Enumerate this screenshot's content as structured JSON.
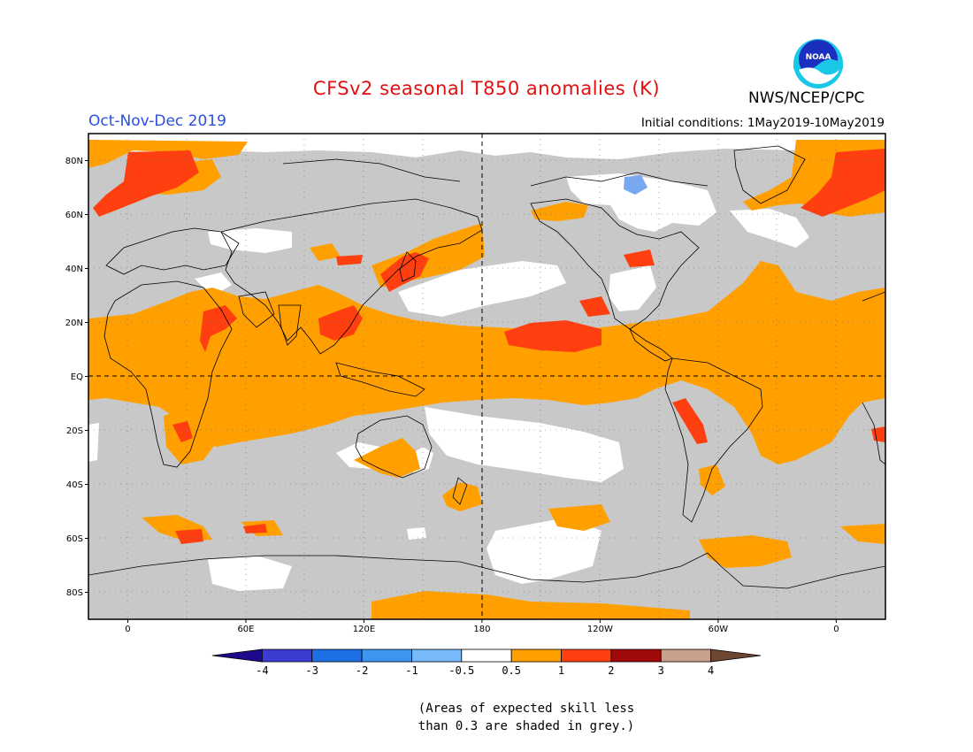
{
  "title": "CFSv2 seasonal T850 anomalies (K)",
  "season_label": "Oct-Nov-Dec 2019",
  "initial_conditions": "Initial conditions: 1May2019-10May2019",
  "agency": "NWS/NCEP/CPC",
  "logo_text": "NOAA",
  "map": {
    "lat_labels": [
      {
        "lat": 80,
        "text": "80N"
      },
      {
        "lat": 60,
        "text": "60N"
      },
      {
        "lat": 40,
        "text": "40N"
      },
      {
        "lat": 20,
        "text": "20N"
      },
      {
        "lat": 0,
        "text": "EQ"
      },
      {
        "lat": -20,
        "text": "20S"
      },
      {
        "lat": -40,
        "text": "40S"
      },
      {
        "lat": -60,
        "text": "60S"
      },
      {
        "lat": -80,
        "text": "80S"
      }
    ],
    "lon_labels": [
      {
        "lon": 0,
        "text": "0"
      },
      {
        "lon": 60,
        "text": "60E"
      },
      {
        "lon": 120,
        "text": "120E"
      },
      {
        "lon": 180,
        "text": "180"
      },
      {
        "lon": 240,
        "text": "120W"
      },
      {
        "lon": 300,
        "text": "60W"
      },
      {
        "lon": 360,
        "text": "0"
      }
    ],
    "lon_range": [
      -20,
      385
    ],
    "lat_range": [
      -90,
      90
    ],
    "colors": {
      "skill_grey": "#c8c8c8",
      "neutral": "#ffffff",
      "warm_0_5_1": "#ffa000",
      "warm_1_2": "#ff3f10",
      "cool": "#78a8f0"
    }
  },
  "colorbar": {
    "tick_labels": [
      "-4",
      "-3",
      "-2",
      "-1",
      "-0.5",
      "0.5",
      "1",
      "2",
      "3",
      "4"
    ],
    "colors": [
      "#1e0a8c",
      "#3c3cd2",
      "#1e6ee6",
      "#3c96f0",
      "#78b9fa",
      "#ffffff",
      "#ffa000",
      "#ff3f10",
      "#a00a0a",
      "#c8a08c",
      "#6e4632"
    ]
  },
  "footnote_line1": "(Areas of expected skill less",
  "footnote_line2": "than 0.3 are shaded in grey.)"
}
